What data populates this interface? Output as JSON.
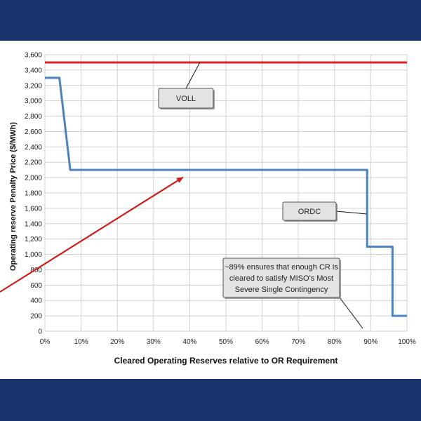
{
  "chart_data": {
    "type": "line",
    "xlabel": "Cleared Operating Reserves relative to OR Requirement",
    "ylabel": "Operating reserve Penalty Price ($/MWh)",
    "xlim": [
      0,
      100
    ],
    "ylim": [
      0,
      3600
    ],
    "x_ticks": [
      0,
      10,
      20,
      30,
      40,
      50,
      60,
      70,
      80,
      90,
      100
    ],
    "x_tick_labels": [
      "0%",
      "10%",
      "20%",
      "30%",
      "40%",
      "50%",
      "60%",
      "70%",
      "80%",
      "90%",
      "100%"
    ],
    "y_ticks": [
      0,
      200,
      400,
      600,
      800,
      1000,
      1200,
      1400,
      1600,
      1800,
      2000,
      2200,
      2400,
      2600,
      2800,
      3000,
      3200,
      3400,
      3600
    ],
    "y_tick_labels": [
      "0",
      "200",
      "400",
      "600",
      "800",
      "1,000",
      "1,200",
      "1,400",
      "1,600",
      "1,800",
      "2,000",
      "2,200",
      "2,400",
      "2,600",
      "2,800",
      "3,000",
      "3,200",
      "3,400",
      "3,600"
    ],
    "grid": true,
    "series": [
      {
        "name": "VOLL",
        "color": "#e02020",
        "x": [
          0,
          100
        ],
        "y": [
          3500,
          3500
        ]
      },
      {
        "name": "ORDC",
        "color": "#4f81bd",
        "x": [
          0,
          4,
          7,
          89,
          89,
          96,
          96,
          100
        ],
        "y": [
          3300,
          3300,
          2100,
          2100,
          1100,
          1100,
          200,
          200
        ]
      }
    ],
    "annotations": [
      {
        "id": "voll",
        "lines": [
          "VOLL"
        ]
      },
      {
        "id": "ordc",
        "lines": [
          "ORDC"
        ]
      },
      {
        "id": "contingency",
        "lines": [
          "~89% ensures that enough CR is",
          "cleared to satisfy MISO's Most",
          "Severe Single Contingency"
        ]
      }
    ],
    "arrow_color": "#cc1f1f"
  }
}
